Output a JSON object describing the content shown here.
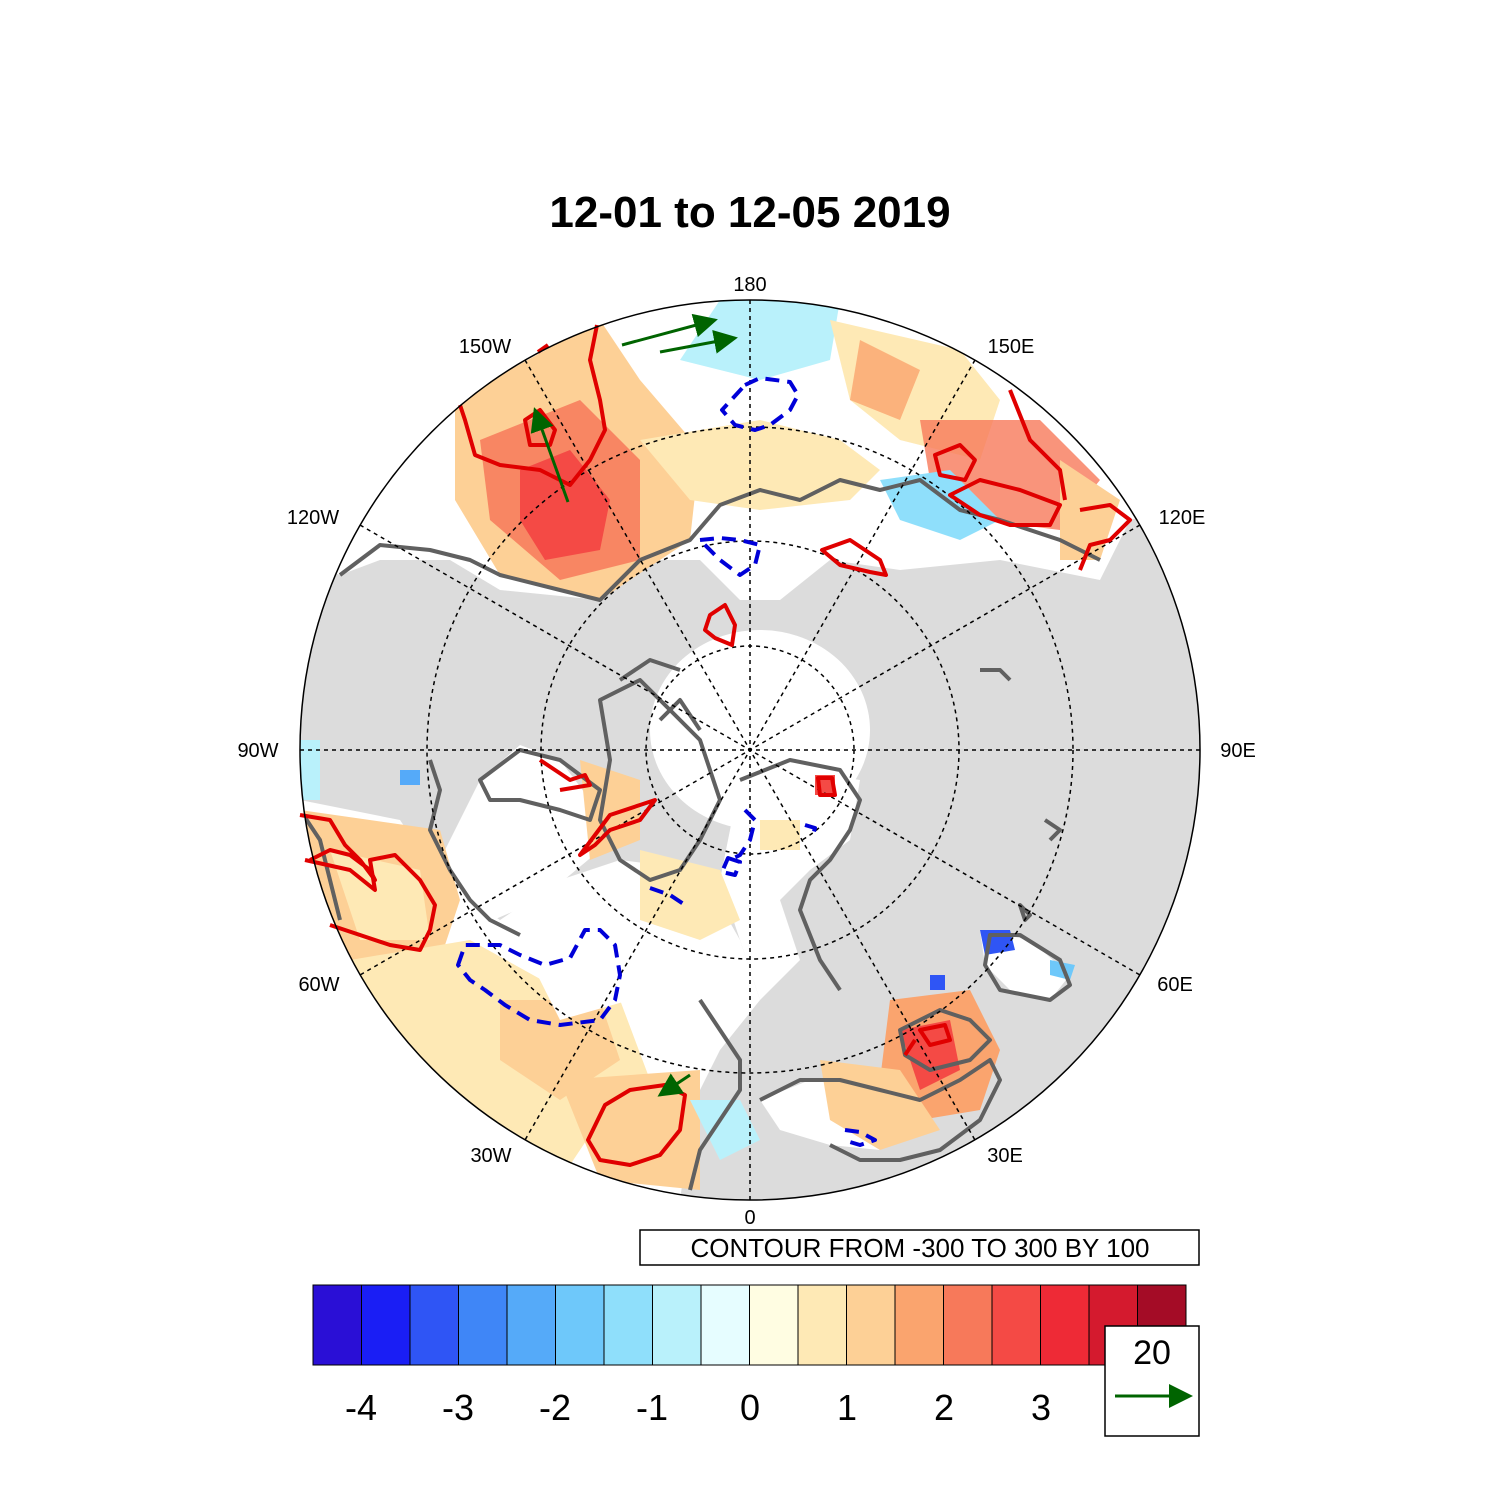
{
  "title": "12-01 to 12-05 2019",
  "longitude_labels": [
    "180",
    "150E",
    "120E",
    "90E",
    "60E",
    "30E",
    "0",
    "30W",
    "60W",
    "90W",
    "120W",
    "150W"
  ],
  "contour_info": "CONTOUR FROM -300 TO 300 BY 100",
  "colorbar": {
    "colors": [
      "#2a0fd6",
      "#1a1ef5",
      "#2f55f5",
      "#3f86f7",
      "#55aaf9",
      "#6ec8fa",
      "#8fdffb",
      "#b9f1fb",
      "#e6fdff",
      "#fffde2",
      "#fee9b5",
      "#fdd096",
      "#faa46e",
      "#f7795a",
      "#f44a45",
      "#ee2a36",
      "#d41a2e",
      "#a40c26"
    ],
    "tick_labels": [
      "-4",
      "-3",
      "-2",
      "-1",
      "0",
      "1",
      "2",
      "3"
    ]
  },
  "reference_vector": {
    "magnitude": "20",
    "color": "#006400"
  },
  "colors": {
    "land": "#dcdcdc",
    "coastline": "#606060",
    "positive_contour": "#e00000",
    "negative_contour": "#0000d8",
    "wind_vector": "#006400"
  }
}
